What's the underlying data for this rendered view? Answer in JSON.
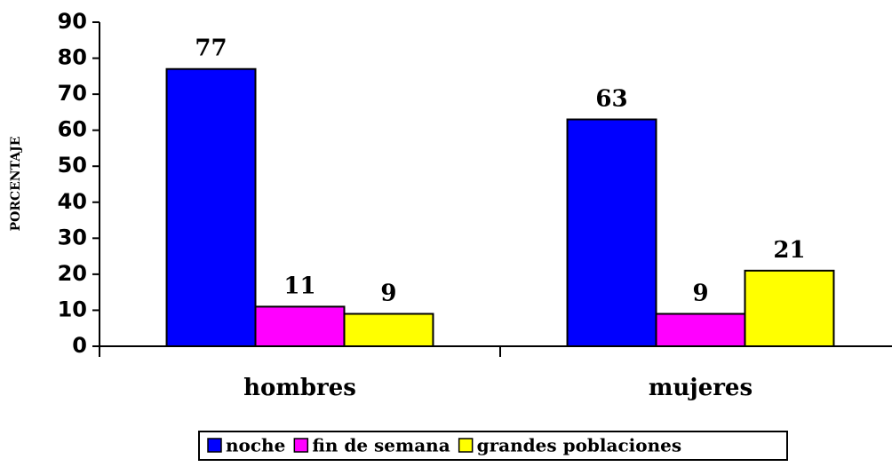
{
  "chart_data": {
    "type": "bar",
    "y_label": "PORCENTAJE",
    "categories": [
      "hombres",
      "mujeres"
    ],
    "series": [
      {
        "name": "noche",
        "color": "#0000ff",
        "values": [
          77,
          63
        ]
      },
      {
        "name": "fin de semana",
        "color": "#ff00ff",
        "values": [
          11,
          9
        ]
      },
      {
        "name": "grandes poblaciones",
        "color": "#ffff00",
        "values": [
          9,
          21
        ]
      }
    ],
    "ylim": [
      0,
      90
    ],
    "yticks": [
      0,
      10,
      20,
      30,
      40,
      50,
      60,
      70,
      80,
      90
    ],
    "legend": "bottom"
  }
}
